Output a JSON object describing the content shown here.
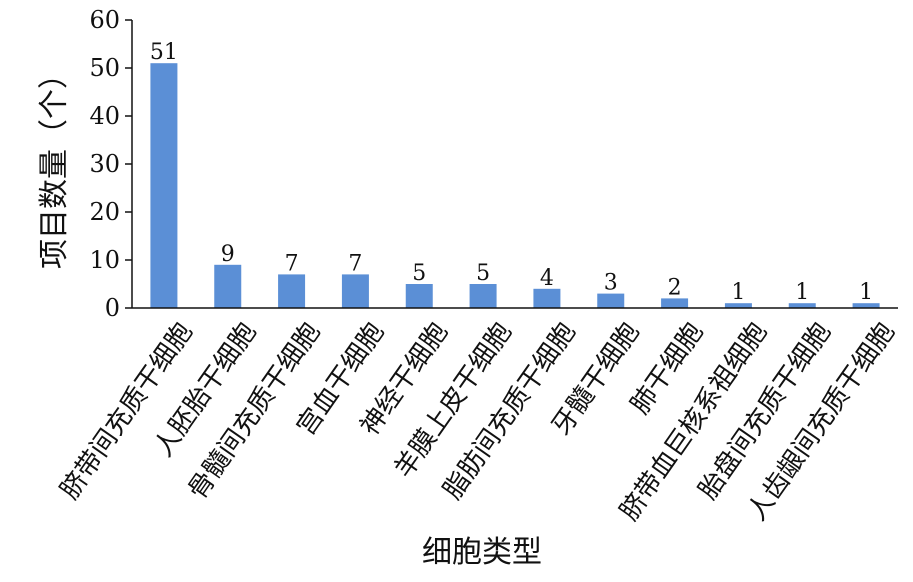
{
  "chart_data": {
    "type": "bar",
    "title": "",
    "xlabel": "细胞类型",
    "ylabel": "项目数量（个）",
    "ylim": [
      0,
      60
    ],
    "yticks": [
      0,
      10,
      20,
      30,
      40,
      50,
      60
    ],
    "grid": false,
    "bar_color": "#5b8fd6",
    "categories": [
      "脐带间充质干细胞",
      "人胚胎干细胞",
      "骨髓间充质干细胞",
      "宫血干细胞",
      "神经干细胞",
      "羊膜上皮干细胞",
      "脂肪间充质干细胞",
      "牙髓干细胞",
      "肺干细胞",
      "脐带血巨核系祖细胞",
      "胎盘间充质干细胞",
      "人齿龈间充质干细胞"
    ],
    "values": [
      51,
      9,
      7,
      7,
      5,
      5,
      4,
      3,
      2,
      1,
      1,
      1
    ]
  }
}
